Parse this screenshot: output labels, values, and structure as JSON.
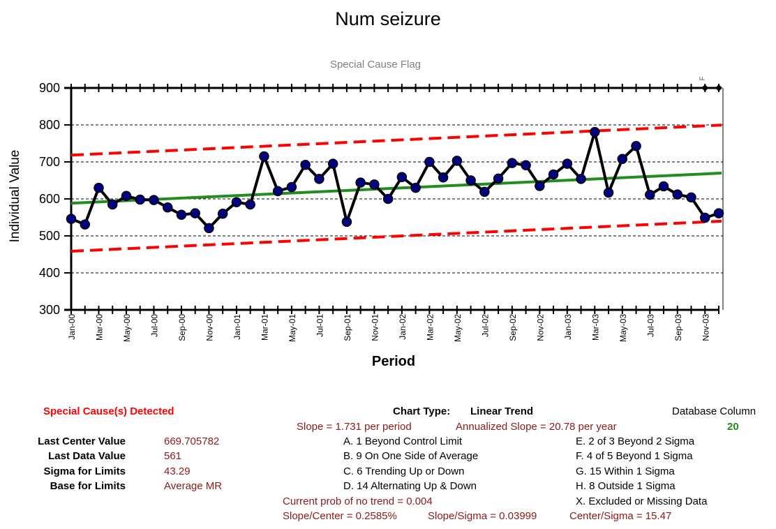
{
  "chart_data": {
    "type": "line",
    "title": "Num seizure",
    "subtitle": "Special Cause Flag",
    "xlabel": "Period",
    "ylabel": "Individual Value",
    "ylim": [
      300,
      900
    ],
    "yticks": [
      300,
      400,
      500,
      600,
      700,
      800,
      900
    ],
    "grid": true,
    "x_tick_labels": [
      "Jan-00",
      "Mar-00",
      "May-00",
      "Jul-00",
      "Sep-00",
      "Nov-00",
      "Jan-01",
      "Mar-01",
      "May-01",
      "Jul-01",
      "Sep-01",
      "Nov-01",
      "Jan-02",
      "Mar-02",
      "May-02",
      "Jul-02",
      "Sep-02",
      "Nov-02",
      "Jan-03",
      "Mar-03",
      "May-03",
      "Jul-03",
      "Sep-03",
      "Nov-03"
    ],
    "flag_label": "F",
    "flagged_periods": [
      46,
      47
    ],
    "series": [
      {
        "name": "",
        "color": "#000000",
        "marker_color": "#000080",
        "values": [
          546,
          531,
          630,
          585,
          608,
          598,
          597,
          577,
          557,
          561,
          521,
          560,
          591,
          585,
          715,
          621,
          632,
          692,
          654,
          695,
          538,
          644,
          639,
          600,
          659,
          630,
          700,
          658,
          703,
          650,
          619,
          655,
          697,
          691,
          635,
          666,
          695,
          654,
          781,
          617,
          708,
          743,
          611,
          634,
          612,
          604,
          549,
          561
        ]
      },
      {
        "name": "center",
        "color": "#228b22",
        "start": 588.4,
        "end": 669.7
      },
      {
        "name": "ucl",
        "color": "#ff0000",
        "dashed": true,
        "start": 718.3,
        "end": 799.6
      },
      {
        "name": "lcl",
        "color": "#ff0000",
        "dashed": true,
        "start": 458.5,
        "end": 539.8
      }
    ]
  },
  "info": {
    "special_cause": "Special Cause(s) Detected",
    "chart_type_label": "Chart Type:",
    "chart_type_value": "Linear Trend",
    "database_column_label": "Database Column",
    "database_column_value": "20",
    "slope": "Slope = 1.731 per period",
    "annualized_slope": "Annualized Slope = 20.78 per year",
    "last_center_label": "Last Center Value",
    "last_center_value": "669.705782",
    "last_data_label": "Last Data Value",
    "last_data_value": "561",
    "sigma_label": "Sigma for Limits",
    "sigma_value": "43.29",
    "base_label": "Base for Limits",
    "base_value": "Average MR",
    "rule_a": "A.  1 Beyond Control Limit",
    "rule_b": "B.  9 On One Side of Average",
    "rule_c": "C.  6 Trending Up or Down",
    "rule_d": "D.  14 Alternating  Up & Down",
    "rule_e": "E.  2 of 3 Beyond 2 Sigma",
    "rule_f": "F.  4 of 5 Beyond 1 Sigma",
    "rule_g": "G.  15 Within 1 Sigma",
    "rule_h": "H.  8 Outside 1 Sigma",
    "rule_x": "X.  Excluded or Missing Data",
    "prob_trend": "Current prob of no trend = 0.004",
    "slope_center": "Slope/Center = 0.2585%",
    "slope_sigma": "Slope/Sigma = 0.03999",
    "center_sigma": "Center/Sigma = 15.47"
  }
}
